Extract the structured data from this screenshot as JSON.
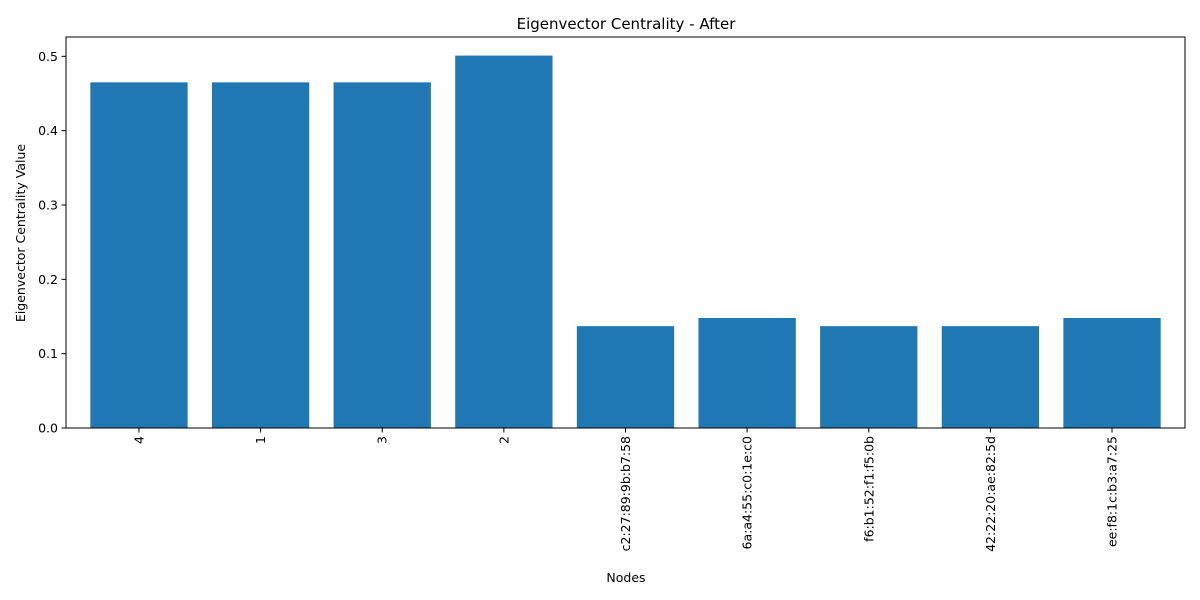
{
  "chart_data": {
    "type": "bar",
    "title": "Eigenvector Centrality - After",
    "xlabel": "Nodes",
    "ylabel": "Eigenvector Centrality Value",
    "categories": [
      "4",
      "1",
      "3",
      "2",
      "c2:27:89:9b:b7:58",
      "6a:a4:55:c0:1e:c0",
      "f6:b1:52:f1:f5:0b",
      "42:22:20:ae:82:5d",
      "ee:f8:1c:b3:a7:25"
    ],
    "values": [
      0.465,
      0.465,
      0.465,
      0.501,
      0.137,
      0.148,
      0.137,
      0.137,
      0.148
    ],
    "ylim": [
      0,
      0.526
    ],
    "yticks": [
      0.0,
      0.1,
      0.2,
      0.3,
      0.4,
      0.5
    ],
    "ytick_labels": [
      "0.0",
      "0.1",
      "0.2",
      "0.3",
      "0.4",
      "0.5"
    ],
    "grid": false,
    "bar_color": "#1f77b4"
  }
}
